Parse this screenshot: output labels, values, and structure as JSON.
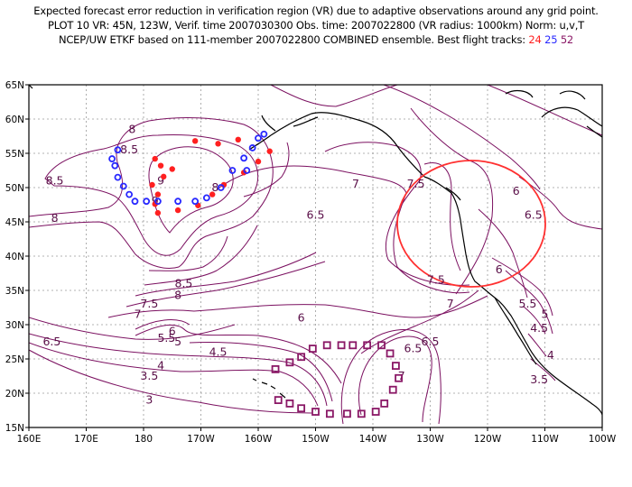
{
  "title": {
    "line1": "Expected forecast error reduction in verification region (VR) due to adaptive observations around any grid point.",
    "line2": "PLOT 10 VR: 45N, 123W, Verif. time 2007030300 Obs. time: 2007022800 (VR radius: 1000km) Norm: u,v,T",
    "line3_prefix": "NCEP/UW ETKF based on 111-member 2007022800 COMBINED ensemble.  Best flight tracks:",
    "tracks": [
      {
        "label": "24",
        "color": "#ff2020"
      },
      {
        "label": "25",
        "color": "#2828ff"
      },
      {
        "label": "52",
        "color": "#8a1866"
      }
    ]
  },
  "map": {
    "lon_range": [
      160,
      260
    ],
    "lat_range": [
      15,
      65
    ],
    "x_ticks": [
      "160E",
      "170E",
      "180",
      "170W",
      "160W",
      "150W",
      "140W",
      "130W",
      "120W",
      "110W",
      "100W"
    ],
    "y_ticks": [
      "15N",
      "20N",
      "25N",
      "30N",
      "35N",
      "40N",
      "45N",
      "50N",
      "55N",
      "60N",
      "65N"
    ],
    "verification_region": {
      "lat": 45,
      "lon": 237,
      "radius_km": 1000
    },
    "contour_labels": [
      {
        "text": "8",
        "lon": 178,
        "lat": 58.5
      },
      {
        "text": "8.5",
        "lon": 177.5,
        "lat": 55.5
      },
      {
        "text": "9",
        "lon": 183,
        "lat": 51
      },
      {
        "text": "9",
        "lon": 182,
        "lat": 48
      },
      {
        "text": "8",
        "lon": 192.5,
        "lat": 50
      },
      {
        "text": "8.5",
        "lon": 164.5,
        "lat": 51
      },
      {
        "text": "8",
        "lon": 164.5,
        "lat": 45.5
      },
      {
        "text": "8.5",
        "lon": 187,
        "lat": 36
      },
      {
        "text": "8",
        "lon": 186,
        "lat": 34.3
      },
      {
        "text": "7.5",
        "lon": 181,
        "lat": 33
      },
      {
        "text": "7",
        "lon": 179,
        "lat": 31.5
      },
      {
        "text": "6.5",
        "lon": 164,
        "lat": 27.5
      },
      {
        "text": "6",
        "lon": 185,
        "lat": 29
      },
      {
        "text": "5.5",
        "lon": 184,
        "lat": 28
      },
      {
        "text": "5",
        "lon": 186,
        "lat": 27.5
      },
      {
        "text": "4.5",
        "lon": 193,
        "lat": 26
      },
      {
        "text": "4",
        "lon": 183,
        "lat": 24
      },
      {
        "text": "3.5",
        "lon": 181,
        "lat": 22.5
      },
      {
        "text": "3",
        "lon": 181,
        "lat": 19
      },
      {
        "text": "6",
        "lon": 207.5,
        "lat": 31
      },
      {
        "text": "7",
        "lon": 217,
        "lat": 50.5
      },
      {
        "text": "6.5",
        "lon": 210,
        "lat": 46
      },
      {
        "text": "7.5",
        "lon": 227.5,
        "lat": 50.5
      },
      {
        "text": "7.5",
        "lon": 231,
        "lat": 36.5
      },
      {
        "text": "7",
        "lon": 233.5,
        "lat": 33
      },
      {
        "text": "6.5",
        "lon": 230,
        "lat": 27.5
      },
      {
        "text": "6.5",
        "lon": 227,
        "lat": 26.5
      },
      {
        "text": "7",
        "lon": 225,
        "lat": 22.5
      },
      {
        "text": "6",
        "lon": 245,
        "lat": 49.5
      },
      {
        "text": "6.5",
        "lon": 248,
        "lat": 46
      },
      {
        "text": "6",
        "lon": 242,
        "lat": 38
      },
      {
        "text": "5.5",
        "lon": 247,
        "lat": 33
      },
      {
        "text": "5",
        "lon": 250,
        "lat": 31.5
      },
      {
        "text": "4.5",
        "lon": 249,
        "lat": 29.5
      },
      {
        "text": "4",
        "lon": 251,
        "lat": 25.5
      },
      {
        "text": "3.5",
        "lon": 249,
        "lat": 22
      }
    ],
    "track_24_red": [
      [
        182,
        54.2
      ],
      [
        183,
        53.2
      ],
      [
        185,
        52.7
      ],
      [
        183.5,
        51.6
      ],
      [
        181.5,
        50.4
      ],
      [
        182.5,
        49
      ],
      [
        182,
        47.6
      ],
      [
        182.5,
        46.3
      ],
      [
        186,
        46.7
      ],
      [
        189.5,
        47.4
      ],
      [
        192,
        49
      ],
      [
        194,
        50.4
      ],
      [
        197.5,
        52.2
      ],
      [
        200,
        53.8
      ],
      [
        202,
        55.3
      ],
      [
        193,
        56.4
      ],
      [
        196.5,
        57
      ],
      [
        189,
        56.8
      ]
    ],
    "track_25_blue": [
      [
        175.5,
        55.5
      ],
      [
        174.5,
        54.2
      ],
      [
        175,
        53.2
      ],
      [
        175.5,
        51.5
      ],
      [
        176.5,
        50.2
      ],
      [
        177.5,
        49
      ],
      [
        178.5,
        48
      ],
      [
        180.5,
        48
      ],
      [
        182.5,
        48
      ],
      [
        186,
        48
      ],
      [
        189,
        48
      ],
      [
        191,
        48.5
      ],
      [
        193.5,
        50
      ],
      [
        195.5,
        52.5
      ],
      [
        197.5,
        54.3
      ],
      [
        199,
        55.8
      ],
      [
        200,
        57.2
      ],
      [
        201,
        57.8
      ],
      [
        198,
        52.5
      ]
    ],
    "track_52_purple": [
      [
        203,
        23.5
      ],
      [
        205.5,
        24.5
      ],
      [
        207.5,
        25.3
      ],
      [
        209.5,
        26.5
      ],
      [
        212,
        27
      ],
      [
        214.5,
        27
      ],
      [
        216.5,
        27
      ],
      [
        219,
        27
      ],
      [
        221.5,
        27
      ],
      [
        223,
        25.8
      ],
      [
        224,
        24
      ],
      [
        224.5,
        22.2
      ],
      [
        223.5,
        20.5
      ],
      [
        222,
        18.5
      ],
      [
        220.5,
        17.3
      ],
      [
        218,
        17
      ],
      [
        215.5,
        17
      ],
      [
        212.5,
        17
      ],
      [
        210,
        17.3
      ],
      [
        207.5,
        17.8
      ],
      [
        205.5,
        18.5
      ],
      [
        203.5,
        19
      ]
    ]
  }
}
